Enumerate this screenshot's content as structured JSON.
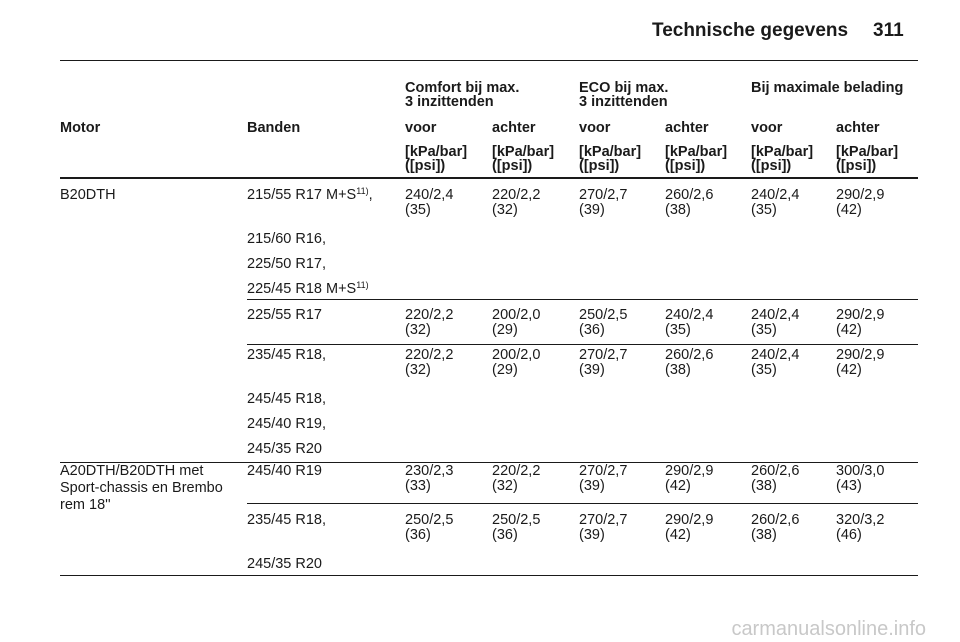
{
  "header": {
    "title": "Technische gegevens",
    "page": "311"
  },
  "table": {
    "group_headers": [
      [
        "Comfort bij max.",
        "3 inzittenden"
      ],
      [
        "ECO bij max.",
        "3 inzittenden"
      ],
      [
        "Bij maximale belading"
      ]
    ],
    "columns": [
      "Motor",
      "Banden",
      "voor",
      "achter",
      "voor",
      "achter",
      "voor",
      "achter"
    ],
    "units": [
      [
        "[kPa/bar]",
        "([psi])"
      ],
      [
        "[kPa/bar]",
        "([psi])"
      ],
      [
        "[kPa/bar]",
        "([psi])"
      ],
      [
        "[kPa/bar]",
        "([psi])"
      ],
      [
        "[kPa/bar]",
        "([psi])"
      ],
      [
        "[kPa/bar]",
        "([psi])"
      ]
    ],
    "groups": [
      {
        "motor": [
          "B20DTH"
        ],
        "rows": [
          {
            "tires": [
              {
                "text": "215/55 R17 M+S",
                "sup": "11)",
                "after": ","
              },
              {
                "text": "215/60 R16,"
              },
              {
                "text": "225/50 R17,"
              },
              {
                "text": "225/45 R18 M+S",
                "sup": "11)"
              }
            ],
            "values": [
              [
                "240/2,4",
                "(35)"
              ],
              [
                "220/2,2",
                "(32)"
              ],
              [
                "270/2,7",
                "(39)"
              ],
              [
                "260/2,6",
                "(38)"
              ],
              [
                "240/2,4",
                "(35)"
              ],
              [
                "290/2,9",
                "(42)"
              ]
            ]
          },
          {
            "tires": [
              {
                "text": "225/55 R17"
              }
            ],
            "values": [
              [
                "220/2,2",
                "(32)"
              ],
              [
                "200/2,0",
                "(29)"
              ],
              [
                "250/2,5",
                "(36)"
              ],
              [
                "240/2,4",
                "(35)"
              ],
              [
                "240/2,4",
                "(35)"
              ],
              [
                "290/2,9",
                "(42)"
              ]
            ]
          },
          {
            "tires": [
              {
                "text": "235/45 R18,"
              },
              {
                "text": "245/45 R18,"
              },
              {
                "text": "245/40 R19,"
              },
              {
                "text": "245/35 R20"
              }
            ],
            "values": [
              [
                "220/2,2",
                "(32)"
              ],
              [
                "200/2,0",
                "(29)"
              ],
              [
                "270/2,7",
                "(39)"
              ],
              [
                "260/2,6",
                "(38)"
              ],
              [
                "240/2,4",
                "(35)"
              ],
              [
                "290/2,9",
                "(42)"
              ]
            ]
          }
        ]
      },
      {
        "motor": [
          "A20DTH/B20DTH met",
          "Sport-chassis en Brembo",
          "rem 18''"
        ],
        "rows": [
          {
            "tires": [
              {
                "text": "245/40 R19"
              }
            ],
            "values": [
              [
                "230/2,3",
                "(33)"
              ],
              [
                "220/2,2",
                "(32)"
              ],
              [
                "270/2,7",
                "(39)"
              ],
              [
                "290/2,9",
                "(42)"
              ],
              [
                "260/2,6",
                "(38)"
              ],
              [
                "300/3,0",
                "(43)"
              ]
            ]
          },
          {
            "tires": [
              {
                "text": "235/45 R18,"
              },
              {
                "text": "245/35 R20"
              }
            ],
            "values": [
              [
                "250/2,5",
                "(36)"
              ],
              [
                "250/2,5",
                "(36)"
              ],
              [
                "270/2,7",
                "(39)"
              ],
              [
                "290/2,9",
                "(42)"
              ],
              [
                "260/2,6",
                "(38)"
              ],
              [
                "320/3,2",
                "(46)"
              ]
            ]
          }
        ]
      }
    ]
  },
  "watermark": "carmanualsonline.info"
}
